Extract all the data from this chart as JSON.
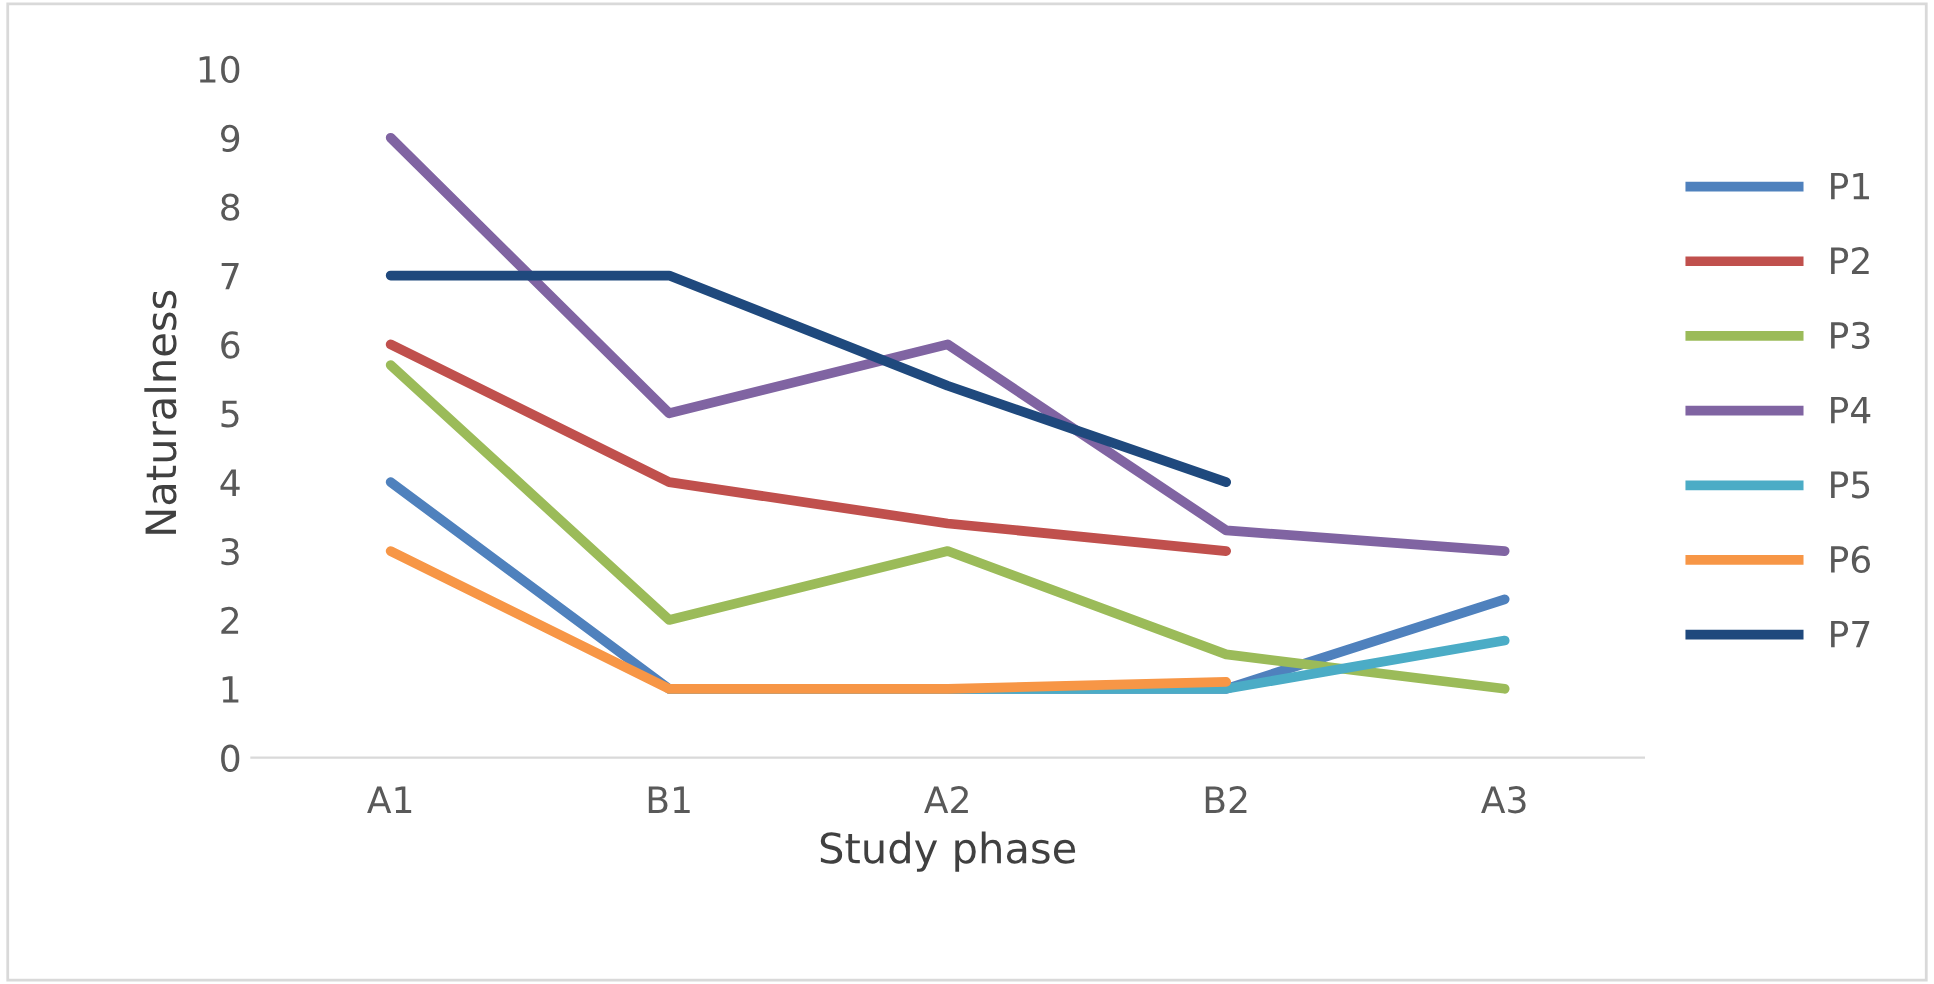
{
  "chart_data": {
    "type": "line",
    "xlabel": "Study phase",
    "ylabel": "Naturalness",
    "categories": [
      "A1",
      "B1",
      "A2",
      "B2",
      "A3"
    ],
    "ylim": [
      0,
      10
    ],
    "yticks": [
      0,
      1,
      2,
      3,
      4,
      5,
      6,
      7,
      8,
      9,
      10
    ],
    "grid": false,
    "legend": "right",
    "marker": "none",
    "line_style": "solid",
    "series": [
      {
        "name": "P1",
        "color": "#4f81bd",
        "values": [
          4,
          1,
          1,
          1,
          2.3
        ]
      },
      {
        "name": "P2",
        "color": "#c0504d",
        "values": [
          6,
          4,
          3.4,
          3,
          null
        ]
      },
      {
        "name": "P3",
        "color": "#9bbb59",
        "values": [
          5.7,
          2,
          3,
          1.5,
          1
        ]
      },
      {
        "name": "P4",
        "color": "#8064a2",
        "values": [
          9,
          5,
          6,
          3.3,
          3
        ]
      },
      {
        "name": "P5",
        "color": "#4bacc6",
        "values": [
          null,
          1,
          1,
          1,
          1.7
        ]
      },
      {
        "name": "P6",
        "color": "#f79646",
        "values": [
          3,
          1,
          1,
          1.1,
          null
        ]
      },
      {
        "name": "P7",
        "color": "#1f497d",
        "values": [
          7,
          7,
          5.4,
          4,
          null
        ]
      }
    ]
  }
}
